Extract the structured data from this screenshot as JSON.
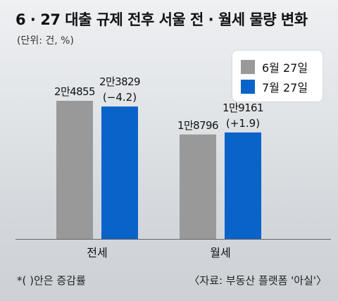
{
  "chart_data": {
    "type": "bar",
    "title": "6 · 27 대출 규제 전후 서울 전 · 월세 물량 변화",
    "unit_label": "(단위: 건, %)",
    "categories": [
      "전세",
      "월세"
    ],
    "series": [
      {
        "name": "6월 27일",
        "color": "#999999",
        "values": [
          24855,
          18796
        ],
        "value_labels": [
          "2만4855",
          "1만8796"
        ]
      },
      {
        "name": "7월 27일",
        "color": "#0a63c9",
        "values": [
          23829,
          19161
        ],
        "value_labels": [
          "2만3829",
          "1만9161"
        ],
        "change_labels": [
          "(−4.2)",
          "(+1.9)"
        ]
      }
    ],
    "ylim": [
      0,
      40000
    ],
    "grid": false,
    "legend_position": "top-right",
    "footnote": "*(  )안은 증감률",
    "source": "〈자료: 부동산 플랫폼 '아실'〉"
  }
}
